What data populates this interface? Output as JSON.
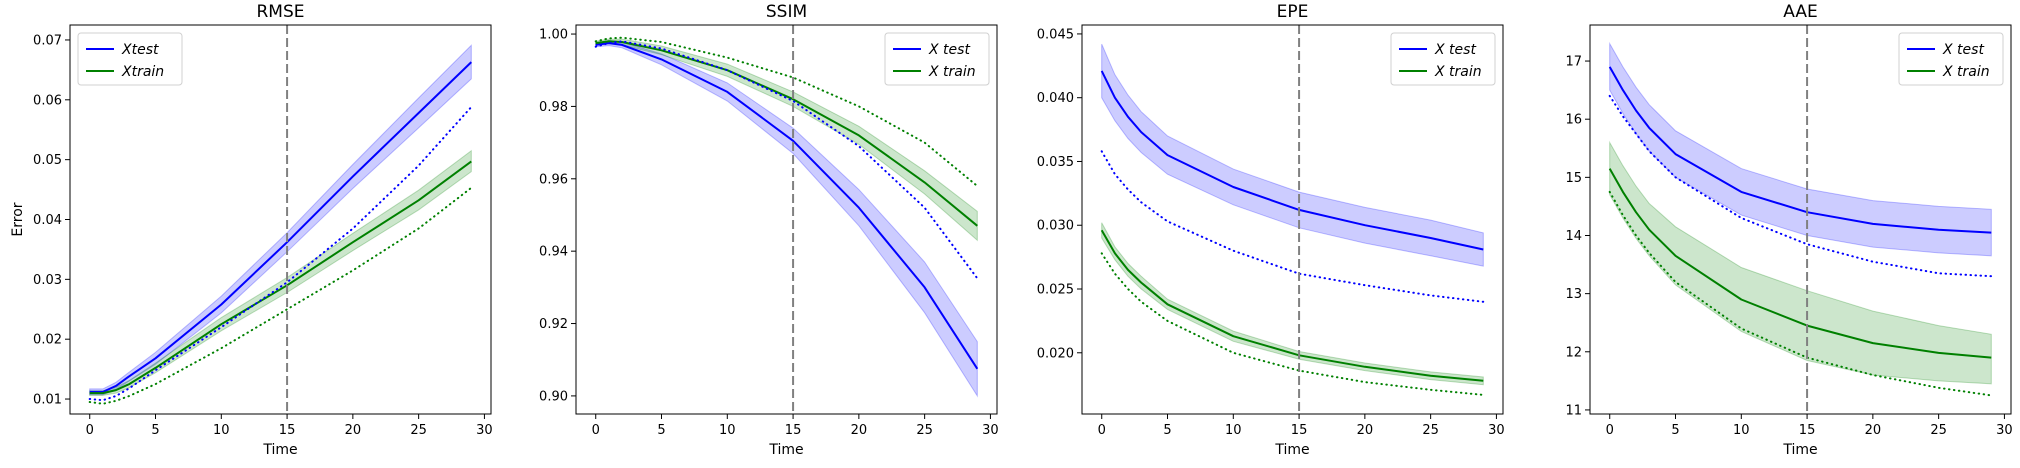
{
  "chart_data": [
    {
      "type": "line",
      "title": "RMSE",
      "xlabel": "Time",
      "ylabel": "Error",
      "xlim": [
        -1.5,
        30.5
      ],
      "ylim": [
        0.0075,
        0.0725
      ],
      "xticks": [
        0,
        5,
        10,
        15,
        20,
        25,
        30
      ],
      "yticks": [
        0.01,
        0.02,
        0.03,
        0.04,
        0.05,
        0.06,
        0.07
      ],
      "ytick_decimals": 2,
      "vline": 15,
      "grid": false,
      "legend_position": "top-left",
      "legend": [
        "Xtest",
        "Xtrain"
      ],
      "series": [
        {
          "name": "Xtest",
          "color": "#0000ff",
          "style": "solid",
          "x": [
            0,
            1,
            2,
            3,
            5,
            10,
            15,
            20,
            25,
            29
          ],
          "y": [
            0.0112,
            0.0112,
            0.0122,
            0.0138,
            0.0168,
            0.0258,
            0.0362,
            0.0472,
            0.0578,
            0.0663
          ],
          "band_low": [
            0.0107,
            0.0107,
            0.0116,
            0.013,
            0.0158,
            0.0244,
            0.0346,
            0.0452,
            0.0553,
            0.0635
          ],
          "band_high": [
            0.0117,
            0.0117,
            0.0128,
            0.0145,
            0.0178,
            0.0272,
            0.0378,
            0.0492,
            0.0603,
            0.0691
          ]
        },
        {
          "name": "Xtrain",
          "color": "#008000",
          "style": "solid",
          "x": [
            0,
            1,
            2,
            3,
            5,
            10,
            15,
            20,
            25,
            29
          ],
          "y": [
            0.011,
            0.011,
            0.0115,
            0.0125,
            0.0152,
            0.0225,
            0.029,
            0.0362,
            0.0432,
            0.0497
          ],
          "band_low": [
            0.0106,
            0.0106,
            0.011,
            0.0119,
            0.0144,
            0.0214,
            0.0278,
            0.0348,
            0.0416,
            0.048
          ],
          "band_high": [
            0.0114,
            0.0114,
            0.012,
            0.0131,
            0.016,
            0.0236,
            0.0303,
            0.0377,
            0.0449,
            0.0515
          ]
        },
        {
          "color": "#0000ff",
          "style": "dotted",
          "x": [
            0,
            1,
            2,
            3,
            5,
            10,
            15,
            20,
            25,
            29
          ],
          "y": [
            0.01,
            0.0098,
            0.0105,
            0.0118,
            0.0148,
            0.022,
            0.0295,
            0.0385,
            0.049,
            0.0588
          ]
        },
        {
          "color": "#008000",
          "style": "dotted",
          "x": [
            0,
            1,
            2,
            3,
            5,
            10,
            15,
            20,
            25,
            29
          ],
          "y": [
            0.0095,
            0.0092,
            0.0097,
            0.0105,
            0.0125,
            0.0185,
            0.025,
            0.0315,
            0.0385,
            0.0453
          ]
        }
      ]
    },
    {
      "type": "line",
      "title": "SSIM",
      "xlabel": "Time",
      "ylabel": "",
      "xlim": [
        -1.5,
        30.5
      ],
      "ylim": [
        0.895,
        1.0025
      ],
      "xticks": [
        0,
        5,
        10,
        15,
        20,
        25,
        30
      ],
      "yticks": [
        0.9,
        0.92,
        0.94,
        0.96,
        0.98,
        1.0
      ],
      "ytick_decimals": 2,
      "vline": 15,
      "grid": false,
      "legend_position": "top-right",
      "legend": [
        "X test",
        "X train"
      ],
      "series": [
        {
          "name": "X test",
          "color": "#0000ff",
          "style": "solid",
          "x": [
            0,
            1,
            2,
            5,
            10,
            15,
            20,
            25,
            29
          ],
          "y": [
            0.997,
            0.9975,
            0.997,
            0.993,
            0.984,
            0.9705,
            0.952,
            0.93,
            0.9075
          ],
          "band_low": [
            0.9965,
            0.9968,
            0.9962,
            0.9915,
            0.9815,
            0.967,
            0.947,
            0.923,
            0.9
          ],
          "band_high": [
            0.9975,
            0.9982,
            0.9978,
            0.9945,
            0.9865,
            0.974,
            0.957,
            0.937,
            0.915
          ]
        },
        {
          "name": "X train",
          "color": "#008000",
          "style": "solid",
          "x": [
            0,
            1,
            2,
            5,
            10,
            15,
            20,
            25,
            29
          ],
          "y": [
            0.9975,
            0.998,
            0.9978,
            0.9955,
            0.99,
            0.982,
            0.972,
            0.959,
            0.947
          ],
          "band_low": [
            0.997,
            0.9974,
            0.997,
            0.9943,
            0.9883,
            0.98,
            0.9695,
            0.9558,
            0.943
          ],
          "band_high": [
            0.998,
            0.9986,
            0.9986,
            0.9967,
            0.9917,
            0.984,
            0.9745,
            0.9622,
            0.951
          ]
        },
        {
          "color": "#0000ff",
          "style": "dotted",
          "x": [
            0,
            1,
            2,
            5,
            10,
            15,
            20,
            25,
            29
          ],
          "y": [
            0.9965,
            0.9975,
            0.998,
            0.996,
            0.99,
            0.9815,
            0.969,
            0.952,
            0.9325
          ]
        },
        {
          "color": "#008000",
          "style": "dotted",
          "x": [
            0,
            1,
            2,
            5,
            10,
            15,
            20,
            25,
            29
          ],
          "y": [
            0.998,
            0.9988,
            0.999,
            0.9978,
            0.9935,
            0.988,
            0.98,
            0.97,
            0.958
          ]
        }
      ]
    },
    {
      "type": "line",
      "title": "EPE",
      "xlabel": "Time",
      "ylabel": "",
      "xlim": [
        -1.5,
        30.5
      ],
      "ylim": [
        0.0152,
        0.0457
      ],
      "xticks": [
        0,
        5,
        10,
        15,
        20,
        25,
        30
      ],
      "yticks": [
        0.02,
        0.025,
        0.03,
        0.035,
        0.04,
        0.045
      ],
      "ytick_decimals": 3,
      "vline": 15,
      "grid": false,
      "legend_position": "top-right",
      "legend": [
        "X test",
        "X train"
      ],
      "series": [
        {
          "name": "X test",
          "color": "#0000ff",
          "style": "solid",
          "x": [
            0,
            1,
            2,
            3,
            5,
            10,
            15,
            20,
            25,
            29
          ],
          "y": [
            0.0421,
            0.04,
            0.0385,
            0.0373,
            0.0355,
            0.033,
            0.0312,
            0.03,
            0.029,
            0.0281
          ],
          "band_low": [
            0.04,
            0.0382,
            0.0368,
            0.0357,
            0.034,
            0.0316,
            0.0298,
            0.0286,
            0.0276,
            0.0268
          ],
          "band_high": [
            0.0442,
            0.0418,
            0.0402,
            0.0389,
            0.037,
            0.0344,
            0.0326,
            0.0314,
            0.0304,
            0.0294
          ]
        },
        {
          "name": "X train",
          "color": "#008000",
          "style": "solid",
          "x": [
            0,
            1,
            2,
            3,
            5,
            10,
            15,
            20,
            25,
            29
          ],
          "y": [
            0.0296,
            0.0278,
            0.0265,
            0.0255,
            0.0238,
            0.0213,
            0.0198,
            0.0189,
            0.0182,
            0.0178
          ],
          "band_low": [
            0.029,
            0.0273,
            0.026,
            0.025,
            0.0234,
            0.0209,
            0.0195,
            0.0186,
            0.0179,
            0.0175
          ],
          "band_high": [
            0.0302,
            0.0283,
            0.027,
            0.026,
            0.0242,
            0.0217,
            0.0201,
            0.0192,
            0.0185,
            0.0181
          ]
        },
        {
          "color": "#0000ff",
          "style": "dotted",
          "x": [
            0,
            1,
            2,
            3,
            5,
            10,
            15,
            20,
            25,
            29
          ],
          "y": [
            0.0358,
            0.034,
            0.0328,
            0.0318,
            0.0303,
            0.028,
            0.0262,
            0.0253,
            0.0245,
            0.024
          ]
        },
        {
          "color": "#008000",
          "style": "dotted",
          "x": [
            0,
            1,
            2,
            3,
            5,
            10,
            15,
            20,
            25,
            29
          ],
          "y": [
            0.0278,
            0.0262,
            0.025,
            0.024,
            0.0225,
            0.02,
            0.0186,
            0.0177,
            0.0171,
            0.0167
          ]
        }
      ]
    },
    {
      "type": "line",
      "title": "AAE",
      "xlabel": "Time",
      "ylabel": "",
      "xlim": [
        -1.5,
        30.5
      ],
      "ylim": [
        10.93,
        17.62
      ],
      "xticks": [
        0,
        5,
        10,
        15,
        20,
        25,
        30
      ],
      "yticks": [
        11,
        12,
        13,
        14,
        15,
        16,
        17
      ],
      "ytick_decimals": 0,
      "vline": 15,
      "grid": false,
      "legend_position": "top-right",
      "legend": [
        "X test",
        "X train"
      ],
      "series": [
        {
          "name": "X test",
          "color": "#0000ff",
          "style": "solid",
          "x": [
            0,
            1,
            2,
            3,
            5,
            10,
            15,
            20,
            25,
            29
          ],
          "y": [
            16.9,
            16.5,
            16.15,
            15.85,
            15.4,
            14.75,
            14.4,
            14.2,
            14.1,
            14.05
          ],
          "band_low": [
            16.5,
            16.1,
            15.75,
            15.45,
            15.0,
            14.35,
            14.0,
            13.8,
            13.7,
            13.65
          ],
          "band_high": [
            17.3,
            16.9,
            16.55,
            16.25,
            15.8,
            15.15,
            14.8,
            14.6,
            14.5,
            14.45
          ]
        },
        {
          "name": "X train",
          "color": "#008000",
          "style": "solid",
          "x": [
            0,
            1,
            2,
            3,
            5,
            10,
            15,
            20,
            25,
            29
          ],
          "y": [
            15.15,
            14.75,
            14.4,
            14.1,
            13.65,
            12.9,
            12.45,
            12.15,
            11.98,
            11.9
          ],
          "band_low": [
            14.7,
            14.3,
            13.95,
            13.65,
            13.15,
            12.35,
            11.85,
            11.6,
            11.5,
            11.45
          ],
          "band_high": [
            15.6,
            15.2,
            14.85,
            14.55,
            14.15,
            13.45,
            13.05,
            12.7,
            12.45,
            12.3
          ]
        },
        {
          "color": "#0000ff",
          "style": "dotted",
          "x": [
            0,
            1,
            2,
            3,
            5,
            10,
            15,
            20,
            25,
            29
          ],
          "y": [
            16.4,
            16.05,
            15.75,
            15.45,
            15.0,
            14.3,
            13.85,
            13.55,
            13.35,
            13.3
          ]
        },
        {
          "color": "#008000",
          "style": "dotted",
          "x": [
            0,
            1,
            2,
            3,
            5,
            10,
            15,
            20,
            25,
            29
          ],
          "y": [
            14.75,
            14.35,
            14.0,
            13.7,
            13.2,
            12.4,
            11.9,
            11.6,
            11.38,
            11.25
          ]
        }
      ]
    }
  ]
}
